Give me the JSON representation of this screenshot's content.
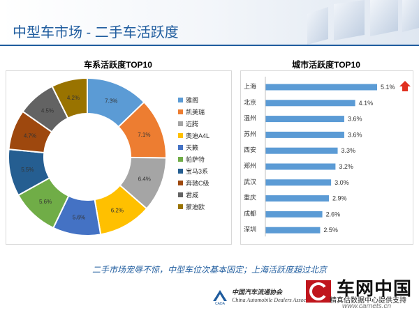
{
  "page": {
    "title": "中型车市场 - 二手车活跃度",
    "summary": "二手市场宠辱不惊，中型车位次基本固定；上海活跃度超过北京"
  },
  "footer": {
    "org_cn": "中国汽车流通协会",
    "org_en": "China Automobile Dealers Association",
    "brand": "车网中国",
    "tagline": "精真估数据中心提供支持",
    "url": "www.carnets.cn"
  },
  "colors": {
    "accent": "#1f5c9e",
    "bar": "#5b9bd5",
    "arrow": "#e03020"
  },
  "chart_data": [
    {
      "type": "pie",
      "variant": "donut",
      "title": "车系活跃度TOP10",
      "legend_position": "right",
      "categories": [
        "雅阁",
        "凯美瑞",
        "迈腾",
        "奥迪A4L",
        "天籁",
        "帕萨特",
        "宝马3系",
        "奔驰C级",
        "君威",
        "蒙迪欧"
      ],
      "labels": [
        "7.3%",
        "7.1%",
        "6.4%",
        "6.2%",
        "5.6%",
        "5.6%",
        "5.5%",
        "4.7%",
        "4.5%",
        "4.2%"
      ],
      "values": [
        7.3,
        7.1,
        6.4,
        6.2,
        5.6,
        5.6,
        5.5,
        4.7,
        4.5,
        4.2
      ],
      "colors": [
        "#5b9bd5",
        "#ed7d31",
        "#a5a5a5",
        "#ffc000",
        "#4472c4",
        "#70ad47",
        "#255e91",
        "#9e480e",
        "#636363",
        "#997300"
      ]
    },
    {
      "type": "bar",
      "orientation": "horizontal",
      "title": "城市活跃度TOP10",
      "categories": [
        "上海",
        "北京",
        "温州",
        "苏州",
        "西安",
        "郑州",
        "武汉",
        "重庆",
        "成都",
        "深圳"
      ],
      "labels": [
        "5.1%",
        "4.1%",
        "3.6%",
        "3.6%",
        "3.3%",
        "3.2%",
        "3.0%",
        "2.9%",
        "2.6%",
        "2.5%"
      ],
      "values": [
        5.1,
        4.1,
        3.6,
        3.6,
        3.3,
        3.2,
        3.0,
        2.9,
        2.6,
        2.5
      ],
      "xlim": [
        0,
        5.1
      ],
      "highlight_index": 0
    }
  ]
}
